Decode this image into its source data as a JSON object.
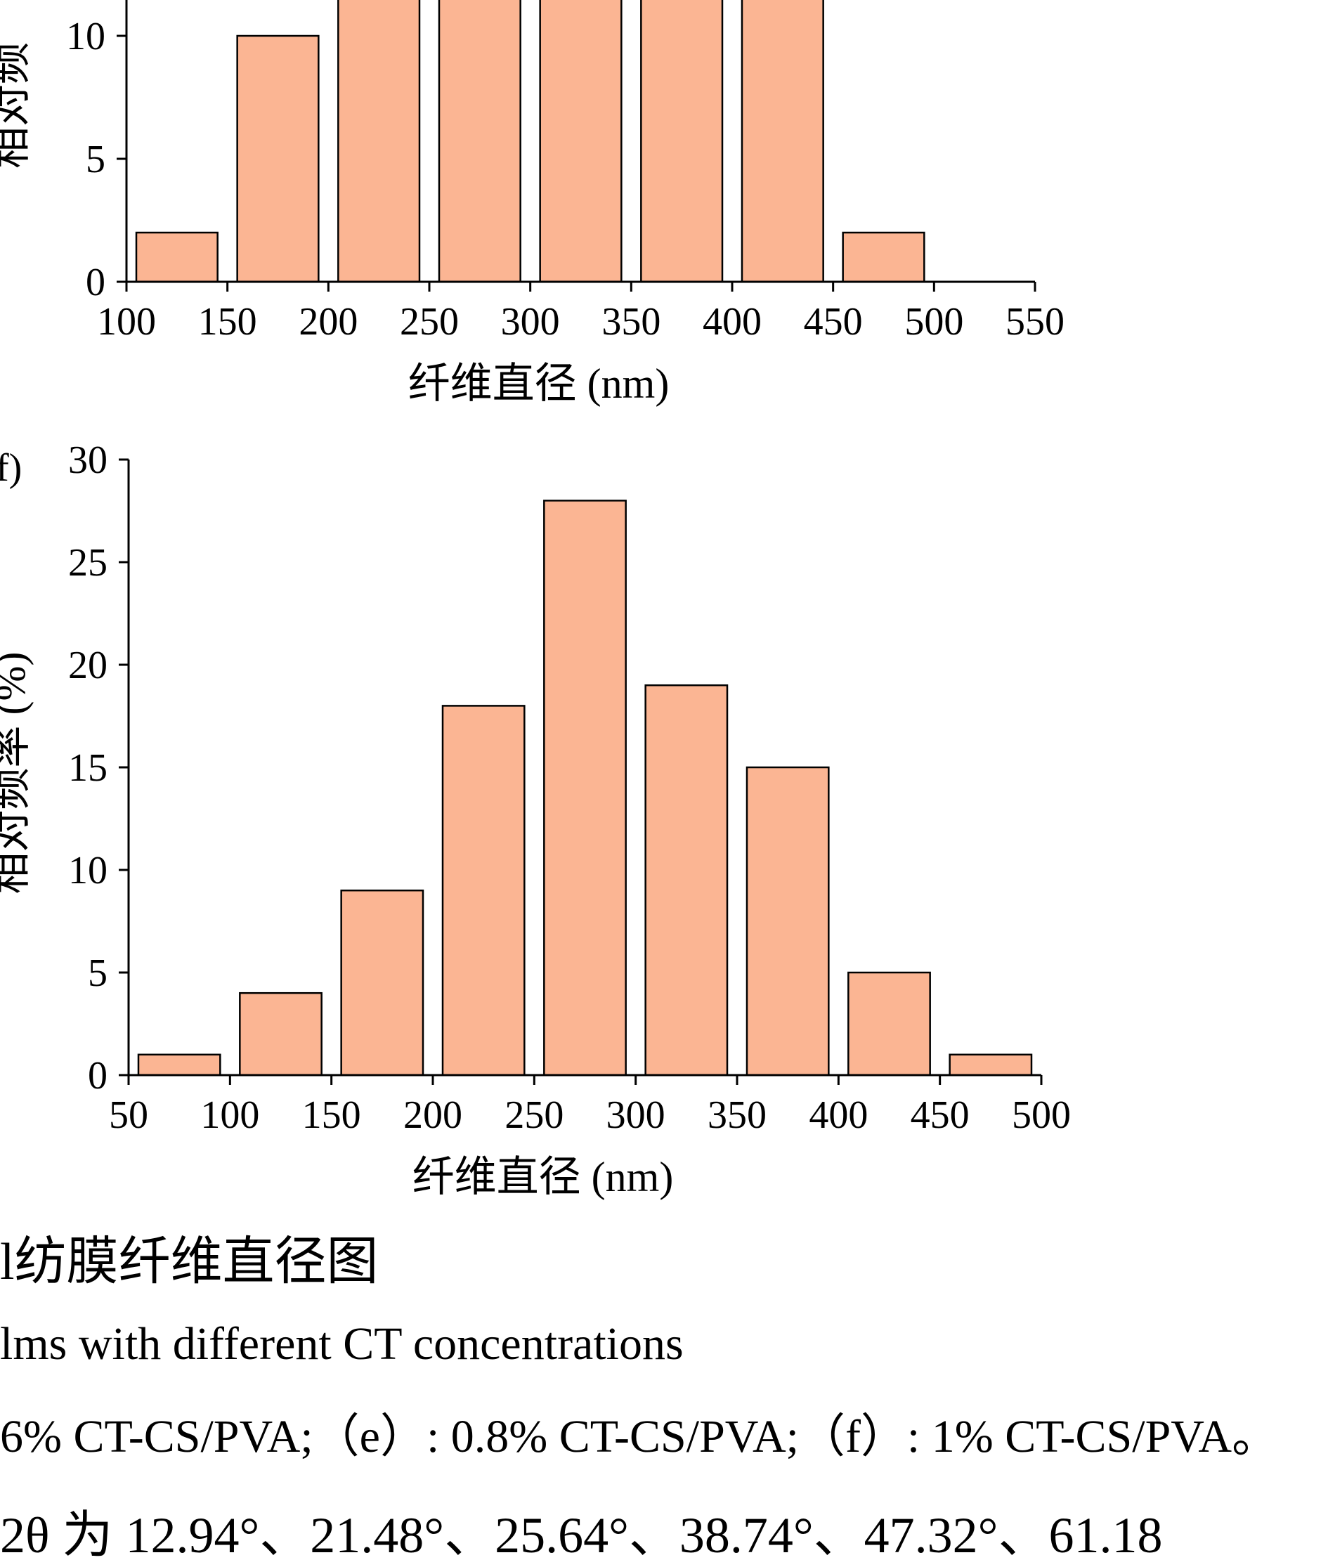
{
  "chart_data": [
    {
      "type": "bar",
      "panel_label": "",
      "xlabel": "纤维直径 (nm)",
      "ylabel": "相对频",
      "categories": [
        "100-150",
        "150-200",
        "200-250",
        "250-300",
        "300-350",
        "350-400",
        "400-450",
        "450-500"
      ],
      "bins": [
        [
          100,
          150
        ],
        [
          150,
          200
        ],
        [
          200,
          250
        ],
        [
          250,
          300
        ],
        [
          300,
          350
        ],
        [
          350,
          400
        ],
        [
          400,
          450
        ],
        [
          450,
          500
        ]
      ],
      "values": [
        2,
        10,
        12,
        12,
        12,
        12,
        12,
        2
      ],
      "xlim": [
        100,
        550
      ],
      "ylim": [
        0,
        12
      ],
      "xticks": [
        100,
        150,
        200,
        250,
        300,
        350,
        400,
        450,
        500,
        550
      ],
      "yticks": [
        0,
        5,
        10
      ],
      "bar_color": "#FBB593",
      "grid": false
    },
    {
      "type": "bar",
      "panel_label": "f)",
      "xlabel": "纤维直径 (nm)",
      "ylabel": "相对频率 (%)",
      "categories": [
        "50-100",
        "100-150",
        "150-200",
        "200-250",
        "250-300",
        "300-350",
        "350-400",
        "400-450",
        "450-500"
      ],
      "bins": [
        [
          50,
          100
        ],
        [
          100,
          150
        ],
        [
          150,
          200
        ],
        [
          200,
          250
        ],
        [
          250,
          300
        ],
        [
          300,
          350
        ],
        [
          350,
          400
        ],
        [
          400,
          450
        ],
        [
          450,
          500
        ]
      ],
      "values": [
        1,
        4,
        9,
        18,
        28,
        19,
        15,
        5,
        1
      ],
      "xlim": [
        50,
        500
      ],
      "ylim": [
        0,
        30
      ],
      "xticks": [
        50,
        100,
        150,
        200,
        250,
        300,
        350,
        400,
        450,
        500
      ],
      "yticks": [
        0,
        5,
        10,
        15,
        20,
        25,
        30
      ],
      "bar_color": "#FBB593",
      "grid": false
    }
  ],
  "caption": {
    "zh": "l纺膜纤维直径图",
    "en": "lms with different CT concentrations",
    "legend": "6% CT-CS/PVA;（e）: 0.8% CT-CS/PVA;（f）: 1% CT-CS/PVA。"
  },
  "body_text": "2θ 为 12.94°、21.48°、25.64°、38.74°、47.32°、61.18"
}
